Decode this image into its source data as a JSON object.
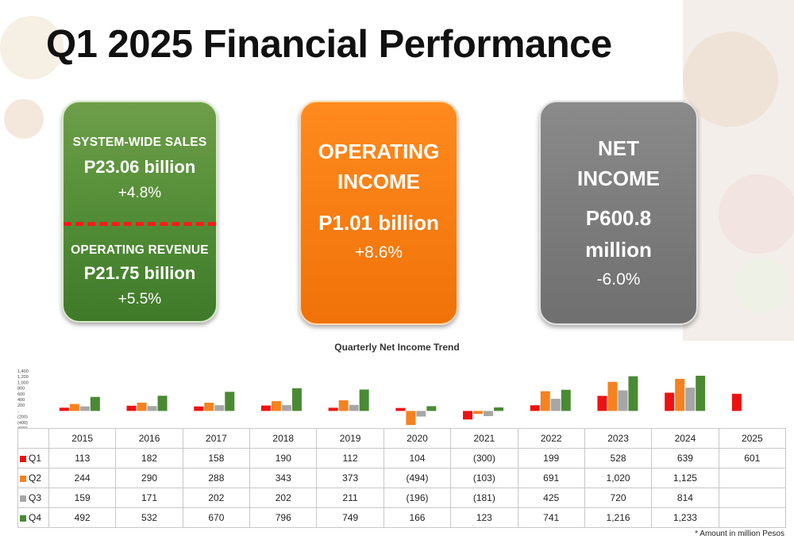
{
  "title": "Q1 2025 Financial Performance",
  "cards": {
    "sales": {
      "label": "SYSTEM-WIDE SALES",
      "value": "P23.06 billion",
      "change": "+4.8%",
      "label2": "OPERATING REVENUE",
      "value2": "P21.75 billion",
      "change2": "+5.5%",
      "color": "#4f8a34"
    },
    "operating": {
      "label_line1": "OPERATING",
      "label_line2": "INCOME",
      "value": "P1.01 billion",
      "change": "+8.6%",
      "color": "#f07208"
    },
    "net": {
      "label_line1": "NET",
      "label_line2": "INCOME",
      "value_line1": "P600.8",
      "value_line2": "million",
      "change": "-6.0%",
      "color": "#707070"
    }
  },
  "chart_data": {
    "type": "bar",
    "title": "Quarterly Net Income Trend",
    "categories": [
      "2015",
      "2016",
      "2017",
      "2018",
      "2019",
      "2020",
      "2021",
      "2022",
      "2023",
      "2024",
      "2025"
    ],
    "series": [
      {
        "name": "Q1",
        "color": "#ee1111",
        "values": [
          113,
          182,
          158,
          190,
          112,
          104,
          -300,
          199,
          528,
          639,
          601
        ]
      },
      {
        "name": "Q2",
        "color": "#f58220",
        "values": [
          244,
          290,
          288,
          343,
          373,
          -494,
          -103,
          691,
          1020,
          1125,
          null
        ]
      },
      {
        "name": "Q3",
        "color": "#a6a6a6",
        "values": [
          159,
          171,
          202,
          202,
          211,
          -196,
          -181,
          425,
          720,
          814,
          null
        ]
      },
      {
        "name": "Q4",
        "color": "#4a8a34",
        "values": [
          492,
          532,
          670,
          796,
          749,
          166,
          123,
          741,
          1216,
          1233,
          null
        ]
      }
    ],
    "table_values": [
      [
        "113",
        "182",
        "158",
        "190",
        "112",
        "104",
        "(300)",
        "199",
        "528",
        "639",
        "601"
      ],
      [
        "244",
        "290",
        "288",
        "343",
        "373",
        "(494)",
        "(103)",
        "691",
        "1,020",
        "1,125",
        ""
      ],
      [
        "159",
        "171",
        "202",
        "202",
        "211",
        "(196)",
        "(181)",
        "425",
        "720",
        "814",
        ""
      ],
      [
        "492",
        "532",
        "670",
        "796",
        "749",
        "166",
        "123",
        "741",
        "1,216",
        "1,233",
        ""
      ]
    ],
    "y_ticks": [
      "1,400",
      "1,200",
      "1,000",
      "800",
      "600",
      "400",
      "200",
      "-",
      "(200)",
      "(400)",
      "(600)"
    ],
    "y_tick_values": [
      1400,
      1200,
      1000,
      800,
      600,
      400,
      200,
      0,
      -200,
      -400,
      -600
    ],
    "ylim": [
      -600,
      1400
    ],
    "legend": "table-left",
    "footnote": "* Amount in million Pesos"
  }
}
